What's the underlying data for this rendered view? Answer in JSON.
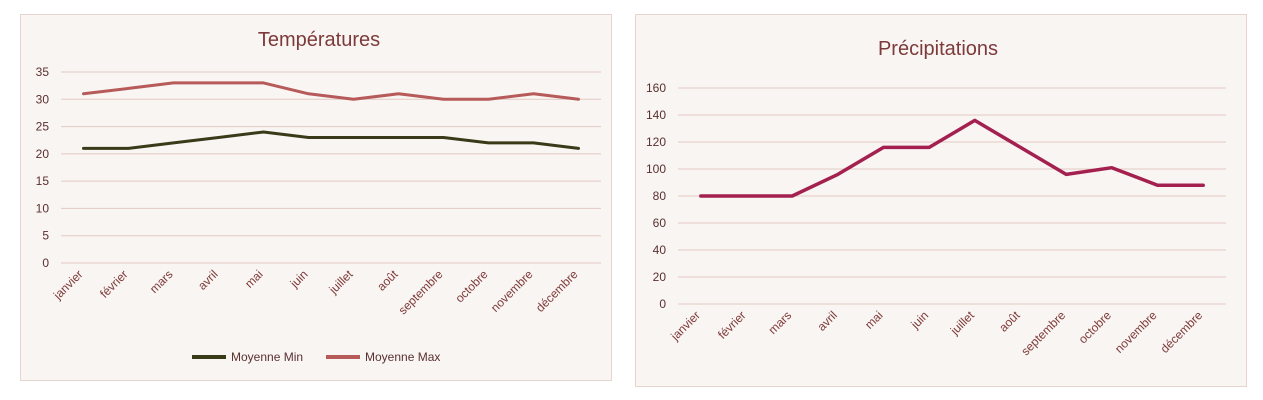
{
  "chart_data": [
    {
      "type": "line",
      "title": "Températures",
      "categories": [
        "janvier",
        "février",
        "mars",
        "avril",
        "mai",
        "juin",
        "juillet",
        "août",
        "septembre",
        "octobre",
        "novembre",
        "décembre"
      ],
      "ylim": [
        0,
        35
      ],
      "yticks": [
        0,
        5,
        10,
        15,
        20,
        25,
        30,
        35
      ],
      "grid": true,
      "legend_position": "bottom",
      "series": [
        {
          "name": "Moyenne Min",
          "color": "#3b3a18",
          "values": [
            21,
            21,
            22,
            23,
            24,
            23,
            23,
            23,
            23,
            22,
            22,
            21
          ]
        },
        {
          "name": "Moyenne Max",
          "color": "#b65a5a",
          "values": [
            31,
            32,
            33,
            33,
            33,
            31,
            30,
            31,
            30,
            30,
            31,
            30
          ]
        }
      ]
    },
    {
      "type": "line",
      "title": "Précipitations",
      "categories": [
        "janvier",
        "février",
        "mars",
        "avril",
        "mai",
        "juin",
        "juillet",
        "août",
        "septembre",
        "octobre",
        "novembre",
        "décembre"
      ],
      "ylim": [
        0,
        160
      ],
      "yticks": [
        0,
        20,
        40,
        60,
        80,
        100,
        120,
        140,
        160
      ],
      "grid": true,
      "series": [
        {
          "color": "#a3204f",
          "values": [
            80,
            80,
            80,
            96,
            116,
            116,
            136,
            116,
            96,
            101,
            88,
            88
          ]
        }
      ]
    }
  ]
}
